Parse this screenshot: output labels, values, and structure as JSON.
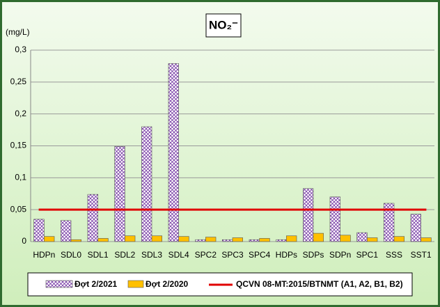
{
  "chart_data": {
    "type": "bar",
    "title": "NO₂⁻",
    "y_label": "(mg/L)",
    "categories": [
      "HDPn",
      "SDL0",
      "SDL1",
      "SDL2",
      "SDL3",
      "SDL4",
      "SPC2",
      "SPC3",
      "SPC4",
      "HDPs",
      "SDPs",
      "SDPn",
      "SPC1",
      "SSS",
      "SST1"
    ],
    "series": [
      {
        "name": "Đợt 2/2021",
        "color": "#7030a0",
        "hatch": true,
        "values": [
          0.035,
          0.033,
          0.074,
          0.149,
          0.18,
          0.279,
          0.003,
          0.003,
          0.003,
          0.003,
          0.083,
          0.07,
          0.014,
          0.06,
          0.043
        ]
      },
      {
        "name": "Đợt 2/2020",
        "color": "#ffc000",
        "values": [
          0.008,
          0.003,
          0.005,
          0.009,
          0.009,
          0.008,
          0.007,
          0.006,
          0.005,
          0.009,
          0.013,
          0.01,
          0.006,
          0.008,
          0.006
        ]
      }
    ],
    "reference_line": {
      "name": "QCVN 08-MT:2015/BTNMT (A1, A2, B1, B2)",
      "value": 0.05,
      "color": "#e00000"
    },
    "ylim": [
      0,
      0.3
    ],
    "yticks": [
      0,
      {
        "value": 0.05,
        "label": "0,05"
      },
      {
        "value": 0.1,
        "label": "0,1"
      },
      {
        "value": 0.15,
        "label": "0,15"
      },
      {
        "value": 0.2,
        "label": "0,2"
      },
      {
        "value": 0.25,
        "label": "0,25"
      },
      {
        "value": 0.3,
        "label": "0,3"
      }
    ],
    "grid": true
  }
}
